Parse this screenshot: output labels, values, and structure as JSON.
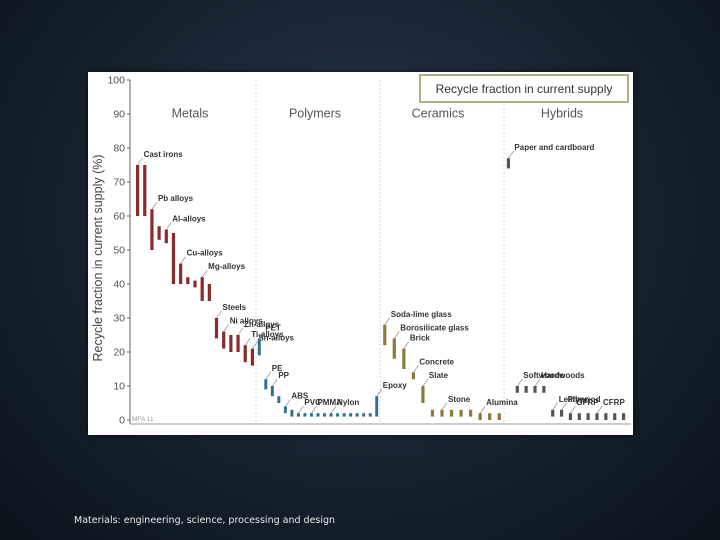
{
  "footer_text": "Materials: engineering, science, processing and design",
  "chart_data": {
    "type": "bar",
    "title": "Recycle fraction in current supply",
    "ylabel": "Recycle fraction in current supply (%)",
    "ylim": [
      0,
      100
    ],
    "yticks": [
      "0",
      "10",
      "20",
      "30",
      "40",
      "50",
      "60",
      "70",
      "80",
      "90",
      "100"
    ],
    "grid": false,
    "legend": "none",
    "watermark": "MFA 11",
    "colors": {
      "metals": "#8b2a2a",
      "polymers": "#2f6f8f",
      "ceramics": "#8c7a3a",
      "hybrids": "#555555",
      "grid": "#cccccc"
    },
    "groups": [
      {
        "name": "Metals",
        "color": "metals",
        "bars": [
          {
            "label": "Cast irons",
            "min": 60,
            "max": 75
          },
          {
            "label": "",
            "min": 60,
            "max": 75
          },
          {
            "label": "Pb alloys",
            "min": 50,
            "max": 62
          },
          {
            "label": "",
            "min": 53,
            "max": 57
          },
          {
            "label": "Al-alloys",
            "min": 52,
            "max": 56
          },
          {
            "label": "",
            "min": 40,
            "max": 55
          },
          {
            "label": "Cu-alloys",
            "min": 40,
            "max": 46
          },
          {
            "label": "",
            "min": 40,
            "max": 42
          },
          {
            "label": "",
            "min": 39,
            "max": 41
          },
          {
            "label": "Mg-alloys",
            "min": 35,
            "max": 42
          },
          {
            "label": "",
            "min": 35,
            "max": 40
          },
          {
            "label": "Steels",
            "min": 24,
            "max": 30
          },
          {
            "label": "Ni alloys",
            "min": 21,
            "max": 26
          },
          {
            "label": "",
            "min": 20,
            "max": 25
          },
          {
            "label": "Zn-alloys",
            "min": 20,
            "max": 25
          },
          {
            "label": "Ti-alloys",
            "min": 17,
            "max": 22
          },
          {
            "label": "Sn-alloys",
            "min": 16,
            "max": 21
          }
        ]
      },
      {
        "name": "Polymers",
        "color": "polymers",
        "bars": [
          {
            "label": "PET",
            "min": 19,
            "max": 24
          },
          {
            "label": "PE",
            "min": 9,
            "max": 12
          },
          {
            "label": "PP",
            "min": 7,
            "max": 10
          },
          {
            "label": "",
            "min": 5,
            "max": 7
          },
          {
            "label": "ABS",
            "min": 2,
            "max": 4
          },
          {
            "label": "",
            "min": 1,
            "max": 3
          },
          {
            "label": "PVC",
            "min": 1,
            "max": 2
          },
          {
            "label": "",
            "min": 1,
            "max": 2
          },
          {
            "label": "PMMA",
            "min": 1,
            "max": 2
          },
          {
            "label": "",
            "min": 1,
            "max": 2
          },
          {
            "label": "",
            "min": 1,
            "max": 2
          },
          {
            "label": "Nylon",
            "min": 1,
            "max": 2
          },
          {
            "label": "",
            "min": 1,
            "max": 2
          },
          {
            "label": "",
            "min": 1,
            "max": 2
          },
          {
            "label": "",
            "min": 1,
            "max": 2
          },
          {
            "label": "",
            "min": 1,
            "max": 2
          },
          {
            "label": "",
            "min": 1,
            "max": 2
          },
          {
            "label": "",
            "min": 1,
            "max": 2
          },
          {
            "label": "Epoxy",
            "min": 1,
            "max": 7
          }
        ]
      },
      {
        "name": "Ceramics",
        "color": "ceramics",
        "bars": [
          {
            "label": "Soda-lime glass",
            "min": 22,
            "max": 28
          },
          {
            "label": "Borosilicate glass",
            "min": 18,
            "max": 24
          },
          {
            "label": "Brick",
            "min": 15,
            "max": 21
          },
          {
            "label": "Concrete",
            "min": 12,
            "max": 14
          },
          {
            "label": "Slate",
            "min": 5,
            "max": 10
          },
          {
            "label": "",
            "min": 1,
            "max": 3
          },
          {
            "label": "Stone",
            "min": 1,
            "max": 3
          },
          {
            "label": "",
            "min": 1,
            "max": 3
          },
          {
            "label": "",
            "min": 1,
            "max": 3
          },
          {
            "label": "",
            "min": 1,
            "max": 3
          },
          {
            "label": "Alumina",
            "min": 0,
            "max": 2
          },
          {
            "label": "",
            "min": 0,
            "max": 2
          },
          {
            "label": "",
            "min": 0,
            "max": 2
          }
        ]
      },
      {
        "name": "Hybrids",
        "color": "hybrids",
        "bars": [
          {
            "label": "Paper and cardboard",
            "min": 74,
            "max": 77
          },
          {
            "label": "Softwoods",
            "min": 8,
            "max": 10
          },
          {
            "label": "",
            "min": 8,
            "max": 10
          },
          {
            "label": "Hardwoods",
            "min": 8,
            "max": 10
          },
          {
            "label": "",
            "min": 8,
            "max": 10
          },
          {
            "label": "Leather",
            "min": 1,
            "max": 3
          },
          {
            "label": "Plywood",
            "min": 1,
            "max": 3
          },
          {
            "label": "GFRP",
            "min": 0,
            "max": 2
          },
          {
            "label": "",
            "min": 0,
            "max": 2
          },
          {
            "label": "",
            "min": 0,
            "max": 2
          },
          {
            "label": "CFRP",
            "min": 0,
            "max": 2
          },
          {
            "label": "",
            "min": 0,
            "max": 2
          },
          {
            "label": "",
            "min": 0,
            "max": 2
          },
          {
            "label": "",
            "min": 0,
            "max": 2
          }
        ]
      }
    ]
  }
}
